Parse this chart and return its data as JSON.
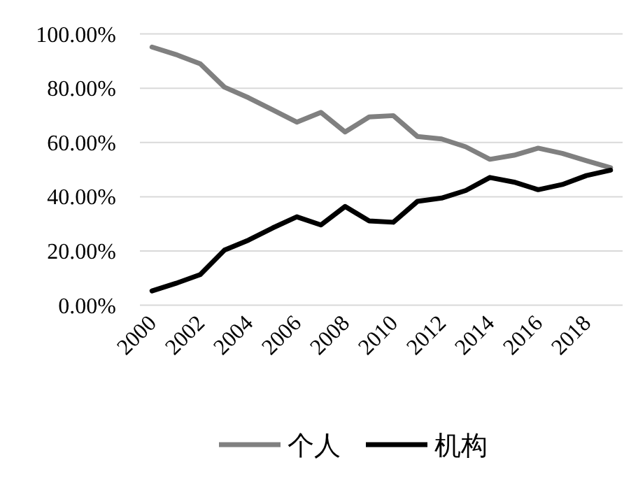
{
  "chart_data": {
    "type": "line",
    "categories": [
      "2000",
      null,
      "2002",
      null,
      "2004",
      null,
      "2006",
      null,
      "2008",
      null,
      "2010",
      null,
      "2012",
      null,
      "2014",
      null,
      "2016",
      null,
      "2018",
      null
    ],
    "series": [
      {
        "name": "个人",
        "color": "#808080",
        "values": [
          95.2,
          92.4,
          89.0,
          80.4,
          76.5,
          72.0,
          67.5,
          71.1,
          63.9,
          69.4,
          69.9,
          62.2,
          61.3,
          58.4,
          53.8,
          55.3,
          57.9,
          56.0,
          53.3,
          50.7
        ]
      },
      {
        "name": "机构",
        "color": "#000000",
        "values": [
          5.3,
          8.1,
          11.3,
          20.3,
          24.0,
          28.5,
          32.6,
          29.6,
          36.4,
          31.1,
          30.6,
          38.3,
          39.5,
          42.3,
          47.1,
          45.4,
          42.6,
          44.5,
          47.8,
          49.8
        ]
      }
    ],
    "ylim": [
      0,
      100
    ],
    "yticks": [
      {
        "value": 0,
        "label": "0.00%"
      },
      {
        "value": 20,
        "label": "20.00%"
      },
      {
        "value": 40,
        "label": "40.00%"
      },
      {
        "value": 60,
        "label": "60.00%"
      },
      {
        "value": 80,
        "label": "80.00%"
      },
      {
        "value": 100,
        "label": "100.00%"
      }
    ],
    "grid": "y",
    "legend": "bottom",
    "marker": "none",
    "line_style": "solid"
  }
}
